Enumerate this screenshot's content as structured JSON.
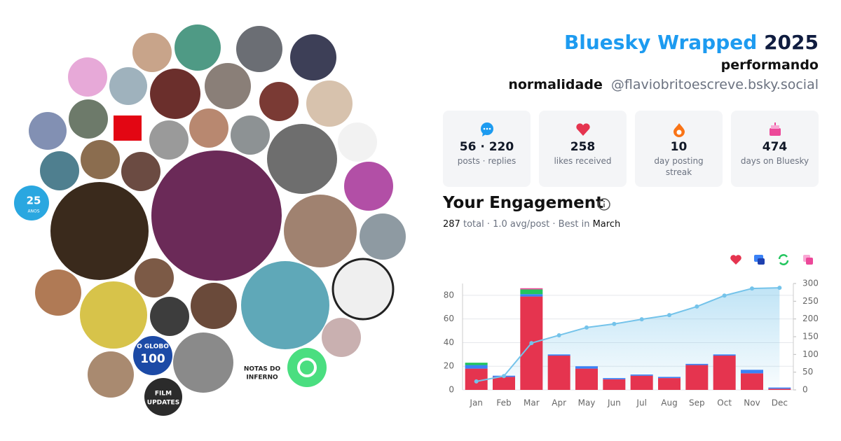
{
  "header": {
    "brand": "Bluesky Wrapped",
    "year": "2025",
    "subtitle": "performando",
    "display_name": "normalidade",
    "handle": "@flaviobritoescreve.bsky.social"
  },
  "avatars": {
    "labels": [
      "25",
      "ANOS",
      "O GLOBO",
      "100",
      "NOTAS DO",
      "INFERNO",
      "FILM",
      "UPDATES"
    ]
  },
  "stats": [
    {
      "value": "56 · 220",
      "label": "posts · replies"
    },
    {
      "value": "258",
      "label": "likes received"
    },
    {
      "value": "10",
      "label": "day posting streak"
    },
    {
      "value": "474",
      "label": "days on Bluesky"
    }
  ],
  "engagement": {
    "title": "Your Engagement",
    "total": "287",
    "summary": "total · 1.0 avg/post · Best in",
    "best": "March"
  },
  "chart_data": {
    "type": "bar",
    "stacked": true,
    "categories": [
      "Jan",
      "Feb",
      "Mar",
      "Apr",
      "May",
      "Jun",
      "Jul",
      "Aug",
      "Sep",
      "Oct",
      "Nov",
      "Dec"
    ],
    "series": [
      {
        "color": "#e5344f",
        "values": [
          18,
          11,
          79,
          29,
          18,
          9,
          12,
          10,
          21,
          29,
          14,
          1
        ]
      },
      {
        "color": "#3b82f6",
        "values": [
          3,
          1,
          2,
          1,
          2,
          1,
          1,
          1,
          1,
          1,
          3,
          1
        ]
      },
      {
        "color": "#22c55e",
        "values": [
          2,
          0,
          4,
          0,
          0,
          0,
          0,
          0,
          0,
          0,
          0,
          0
        ]
      },
      {
        "color": "#ec4899",
        "values": [
          0,
          0,
          1,
          0,
          0,
          0,
          0,
          0,
          0,
          0,
          0,
          0
        ]
      },
      {
        "type": "area",
        "axis": "y2",
        "color": "#74c3ea",
        "values": [
          24,
          39,
          132,
          154,
          176,
          186,
          199,
          211,
          235,
          266,
          286,
          288
        ]
      }
    ],
    "ylim": [
      0,
      90
    ],
    "yticks": [
      0,
      20,
      40,
      60,
      80
    ],
    "y2lim": [
      0,
      300
    ],
    "y2ticks": [
      0,
      50,
      100,
      150,
      200,
      250,
      300
    ],
    "grid": true
  }
}
